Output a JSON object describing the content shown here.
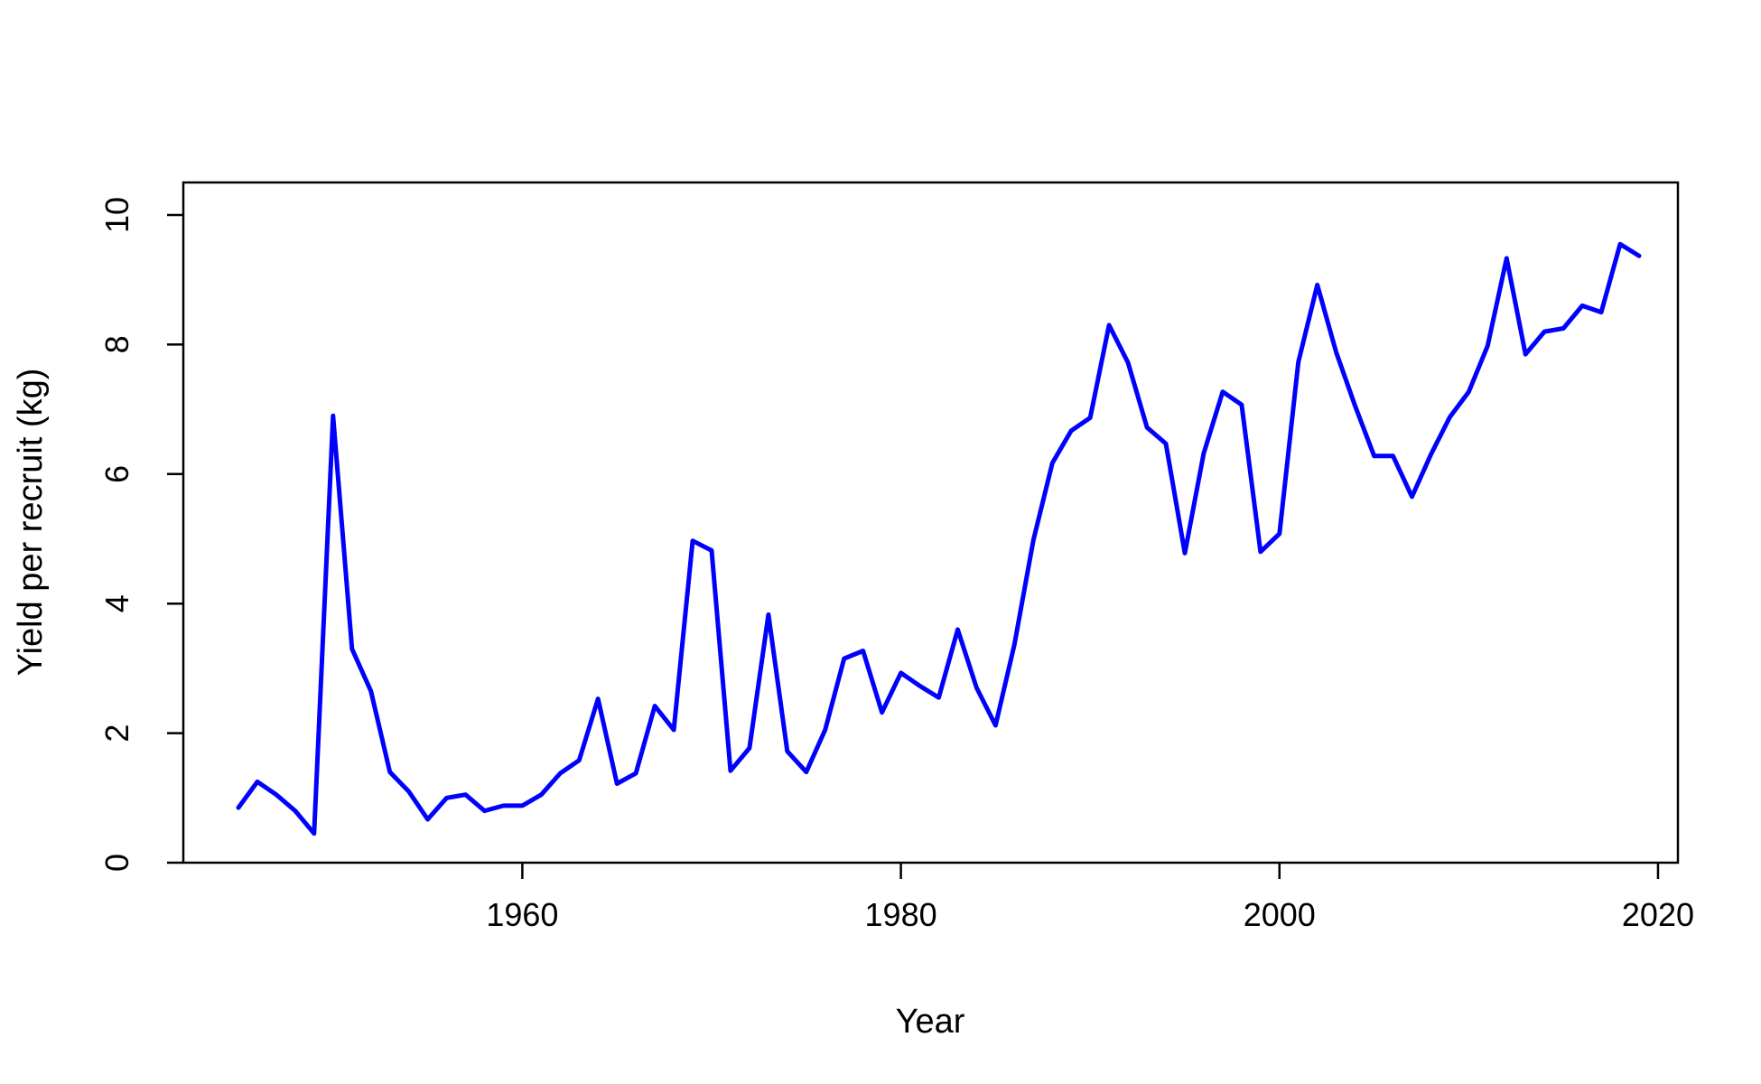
{
  "chart_data": {
    "type": "line",
    "title": "",
    "xlabel": "Year",
    "ylabel": "Yield per recruit (kg)",
    "xlim": [
      1942,
      2022
    ],
    "ylim": [
      0,
      10.5
    ],
    "x_ticks": [
      1960,
      1980,
      2000,
      2020
    ],
    "y_ticks": [
      0,
      2,
      4,
      6,
      8,
      10
    ],
    "grid": false,
    "legend": "none",
    "line_color": "#0000ff",
    "series": [
      {
        "x": [
          1945,
          1946,
          1947,
          1948,
          1949,
          1950,
          1951,
          1952,
          1953,
          1954,
          1955,
          1956,
          1957,
          1958,
          1959,
          1960,
          1961,
          1962,
          1963,
          1964,
          1965,
          1966,
          1967,
          1968,
          1969,
          1970,
          1971,
          1972,
          1973,
          1974,
          1975,
          1976,
          1977,
          1978,
          1979,
          1980,
          1981,
          1982,
          1983,
          1984,
          1985,
          1986,
          1987,
          1988,
          1989,
          1990,
          1991,
          1992,
          1993,
          1994,
          1995,
          1996,
          1997,
          1998,
          1999,
          2000,
          2001,
          2002,
          2003,
          2004,
          2005,
          2006,
          2007,
          2008,
          2009,
          2010,
          2011,
          2012,
          2013,
          2014,
          2015,
          2016,
          2017,
          2018,
          2019
        ],
        "y": [
          0.85,
          1.25,
          1.05,
          0.8,
          0.45,
          6.9,
          3.3,
          2.65,
          1.4,
          1.1,
          0.67,
          1.0,
          1.05,
          0.8,
          0.88,
          0.88,
          1.05,
          1.38,
          1.58,
          2.53,
          1.22,
          1.38,
          2.42,
          2.05,
          4.97,
          4.82,
          1.42,
          1.77,
          3.83,
          1.72,
          1.4,
          2.05,
          3.15,
          3.27,
          2.32,
          2.93,
          2.73,
          2.55,
          3.6,
          2.7,
          2.12,
          3.37,
          4.98,
          6.17,
          6.67,
          6.87,
          8.3,
          7.72,
          6.72,
          6.47,
          4.78,
          6.32,
          7.27,
          7.07,
          4.8,
          5.08,
          7.73,
          8.92,
          7.88,
          7.05,
          6.28,
          6.28,
          5.65,
          6.3,
          6.88,
          7.27,
          7.98,
          9.33,
          7.85,
          8.2,
          8.25,
          8.6,
          8.5,
          9.55,
          9.37
        ]
      }
    ]
  }
}
